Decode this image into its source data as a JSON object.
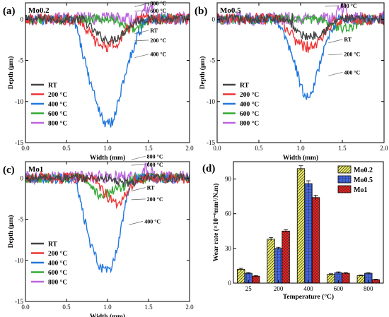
{
  "chart_data": [
    {
      "type": "line",
      "panel_label": "(a)",
      "title": "Mo0.2",
      "xlabel": "Width (mm)",
      "ylabel": "Depth (μm)",
      "xlim": [
        0.0,
        2.0
      ],
      "ylim": [
        -15,
        2
      ],
      "xticks": [
        "0.0",
        "0.5",
        "1.0",
        "1.5",
        "2.0"
      ],
      "yticks": [
        "0",
        "-5",
        "-10",
        "-15"
      ],
      "legend_position": "lower-left",
      "series": [
        {
          "name": "RT",
          "color": "#444444",
          "start": 0.7,
          "end": 1.4,
          "points": [
            [
              0.7,
              0
            ],
            [
              0.85,
              -1.6
            ],
            [
              0.95,
              -2.3
            ],
            [
              1.05,
              -2.6
            ],
            [
              1.15,
              -2.0
            ],
            [
              1.25,
              -1.0
            ],
            [
              1.4,
              0
            ]
          ]
        },
        {
          "name": "200 °C",
          "color": "#ee3333",
          "start": 0.65,
          "end": 1.35,
          "points": [
            [
              0.65,
              0
            ],
            [
              0.75,
              -1.2
            ],
            [
              0.85,
              -2.7
            ],
            [
              0.95,
              -3.3
            ],
            [
              1.05,
              -3.2
            ],
            [
              1.15,
              -2.6
            ],
            [
              1.25,
              -1.2
            ],
            [
              1.35,
              0
            ]
          ]
        },
        {
          "name": "400 °C",
          "color": "#2277dd",
          "start": 0.6,
          "end": 1.45,
          "points": [
            [
              0.6,
              -0.2
            ],
            [
              0.66,
              -2.5
            ],
            [
              0.72,
              -5
            ],
            [
              0.8,
              -8
            ],
            [
              0.88,
              -10.5
            ],
            [
              0.95,
              -12.3
            ],
            [
              1.0,
              -12.8
            ],
            [
              1.06,
              -12.5
            ],
            [
              1.12,
              -10.6
            ],
            [
              1.2,
              -7.2
            ],
            [
              1.28,
              -4.5
            ],
            [
              1.36,
              -2.2
            ],
            [
              1.45,
              -0.3
            ]
          ]
        },
        {
          "name": "600 °C",
          "color": "#33aa33",
          "start": 1.1,
          "end": 1.5,
          "points": [
            [
              1.1,
              0
            ],
            [
              1.2,
              -0.8
            ],
            [
              1.3,
              -1.3
            ],
            [
              1.4,
              -0.9
            ],
            [
              1.5,
              0
            ]
          ]
        },
        {
          "name": "800 °C",
          "color": "#bb66dd",
          "start": 1.5,
          "end": 1.5,
          "points": [
            [
              1.5,
              0
            ]
          ]
        }
      ],
      "annotations": [
        {
          "text": "800 °C",
          "x": 1.52,
          "y": 1.7
        },
        {
          "text": "600 °C",
          "x": 1.52,
          "y": 0.8
        },
        {
          "text": "RT",
          "x": 1.52,
          "y": -1.6
        },
        {
          "text": "200 °C",
          "x": 1.52,
          "y": -2.8
        },
        {
          "text": "400 °C",
          "x": 1.52,
          "y": -4.5
        }
      ]
    },
    {
      "type": "line",
      "panel_label": "(b)",
      "title": "Mo0.5",
      "xlabel": "Width (mm)",
      "ylabel": "Depth (μm)",
      "xlim": [
        0.0,
        2.0
      ],
      "ylim": [
        -15,
        2
      ],
      "xticks": [
        "0.0",
        "0.5",
        "1.0",
        "1.5",
        "2.0"
      ],
      "yticks": [
        "0",
        "-5",
        "-10",
        "-15"
      ],
      "legend_position": "lower-left",
      "series": [
        {
          "name": "RT",
          "color": "#444444",
          "start": 0.85,
          "end": 1.45,
          "points": [
            [
              0.85,
              0
            ],
            [
              0.95,
              -1.5
            ],
            [
              1.05,
              -2.1
            ],
            [
              1.15,
              -2.0
            ],
            [
              1.25,
              -1.6
            ],
            [
              1.35,
              -0.8
            ],
            [
              1.45,
              0
            ]
          ]
        },
        {
          "name": "200 °C",
          "color": "#ee3333",
          "start": 0.75,
          "end": 1.45,
          "points": [
            [
              0.75,
              0
            ],
            [
              0.85,
              -1.4
            ],
            [
              0.95,
              -2.6
            ],
            [
              1.05,
              -3.3
            ],
            [
              1.15,
              -3.5
            ],
            [
              1.25,
              -2.2
            ],
            [
              1.35,
              -1.0
            ],
            [
              1.45,
              0
            ]
          ]
        },
        {
          "name": "400 °C",
          "color": "#2277dd",
          "start": 0.7,
          "end": 1.45,
          "points": [
            [
              0.7,
              0
            ],
            [
              0.8,
              -1.8
            ],
            [
              0.9,
              -4.5
            ],
            [
              0.98,
              -7.2
            ],
            [
              1.05,
              -9.3
            ],
            [
              1.1,
              -9.6
            ],
            [
              1.15,
              -8.6
            ],
            [
              1.22,
              -5.8
            ],
            [
              1.3,
              -3.0
            ],
            [
              1.38,
              -1.2
            ],
            [
              1.45,
              0
            ]
          ]
        },
        {
          "name": "600 °C",
          "color": "#33aa33",
          "start": 1.25,
          "end": 1.75,
          "points": [
            [
              1.25,
              0
            ],
            [
              1.4,
              -0.9
            ],
            [
              1.55,
              -1.1
            ],
            [
              1.7,
              -0.5
            ],
            [
              1.75,
              0
            ]
          ]
        },
        {
          "name": "800 °C",
          "color": "#bb66dd",
          "start": 1.25,
          "end": 1.25,
          "points": [
            [
              1.25,
              0
            ]
          ]
        }
      ],
      "annotations": [
        {
          "text": "800 °C",
          "x": 1.48,
          "y": 2.9
        },
        {
          "text": "600 °C",
          "x": 1.48,
          "y": 1.4
        },
        {
          "text": "RT",
          "x": 1.52,
          "y": -2.7
        },
        {
          "text": "200 °C",
          "x": 1.52,
          "y": -4.5
        },
        {
          "text": "400 °C",
          "x": 1.52,
          "y": -6.7
        }
      ]
    },
    {
      "type": "line",
      "panel_label": "(c)",
      "title": "Mo1",
      "xlabel": "Width (mm)",
      "ylabel": "Depth (μm)",
      "xlim": [
        0.0,
        2.0
      ],
      "ylim": [
        -15,
        2
      ],
      "xticks": [
        "0.0",
        "0.5",
        "1.0",
        "1.5",
        "2.0"
      ],
      "yticks": [
        "0",
        "-5",
        "-10",
        "-15"
      ],
      "legend_position": "lower-left",
      "series": [
        {
          "name": "RT",
          "color": "#444444",
          "start": 1.0,
          "end": 1.5,
          "points": [
            [
              1.0,
              0
            ],
            [
              1.1,
              -0.4
            ],
            [
              1.2,
              -0.6
            ],
            [
              1.3,
              -0.5
            ],
            [
              1.4,
              -0.3
            ],
            [
              1.5,
              0
            ]
          ]
        },
        {
          "name": "200 °C",
          "color": "#ee3333",
          "start": 0.85,
          "end": 1.35,
          "points": [
            [
              0.85,
              0
            ],
            [
              0.95,
              -1.6
            ],
            [
              1.05,
              -2.8
            ],
            [
              1.12,
              -3.4
            ],
            [
              1.18,
              -2.5
            ],
            [
              1.26,
              -1.2
            ],
            [
              1.35,
              0
            ]
          ]
        },
        {
          "name": "400 °C",
          "color": "#2277dd",
          "start": 0.6,
          "end": 1.3,
          "points": [
            [
              0.6,
              0
            ],
            [
              0.66,
              -2.5
            ],
            [
              0.72,
              -5.2
            ],
            [
              0.8,
              -8.3
            ],
            [
              0.88,
              -10.3
            ],
            [
              0.95,
              -11.2
            ],
            [
              1.0,
              -11.4
            ],
            [
              1.06,
              -10.8
            ],
            [
              1.12,
              -8.6
            ],
            [
              1.18,
              -5.2
            ],
            [
              1.24,
              -2.3
            ],
            [
              1.3,
              0
            ]
          ]
        },
        {
          "name": "600 °C",
          "color": "#33aa33",
          "start": 0.7,
          "end": 1.3,
          "points": [
            [
              0.7,
              0
            ],
            [
              0.8,
              -1.3
            ],
            [
              0.9,
              -2.0
            ],
            [
              1.0,
              -1.8
            ],
            [
              1.1,
              -1.5
            ],
            [
              1.2,
              -1.0
            ],
            [
              1.3,
              0
            ]
          ]
        },
        {
          "name": "800 °C",
          "color": "#bb66dd",
          "start": 1.25,
          "end": 1.25,
          "points": [
            [
              1.25,
              0
            ]
          ]
        }
      ],
      "annotations": [
        {
          "text": "800 °C",
          "x": 1.48,
          "y": 2.4
        },
        {
          "text": "600 °C",
          "x": 1.48,
          "y": 1.4
        },
        {
          "text": "RT",
          "x": 1.48,
          "y": -1.4
        },
        {
          "text": "200 °C",
          "x": 1.48,
          "y": -2.8
        },
        {
          "text": "400 °C",
          "x": 1.45,
          "y": -5.5
        }
      ]
    },
    {
      "type": "bar",
      "panel_label": "(d)",
      "xlabel": "Temperature (°C)",
      "ylabel": "Wear rate (×10⁻⁶mm³/N.m)",
      "categories": [
        "25",
        "200",
        "400",
        "600",
        "800"
      ],
      "ylim": [
        0,
        105
      ],
      "yticks": [
        "0",
        "30",
        "60",
        "90"
      ],
      "legend_position": "top-right",
      "series": [
        {
          "name": "Mo0.2",
          "color": "#eeee66",
          "pattern": "hatch",
          "values": [
            12,
            38,
            99,
            7.5,
            6.5
          ],
          "errors": [
            0.8,
            1.5,
            2.5,
            0.6,
            0.5
          ]
        },
        {
          "name": "Mo0.5",
          "color": "#4466dd",
          "pattern": "grid",
          "values": [
            8.5,
            30,
            86,
            9,
            8.5
          ],
          "errors": [
            0.6,
            1.0,
            2.5,
            0.7,
            0.5
          ]
        },
        {
          "name": "Mo1",
          "color": "#ee2222",
          "pattern": "cross",
          "values": [
            6,
            45,
            74,
            8.5,
            3
          ],
          "errors": [
            0.5,
            1.2,
            2.0,
            0.6,
            0.4
          ]
        }
      ]
    }
  ]
}
